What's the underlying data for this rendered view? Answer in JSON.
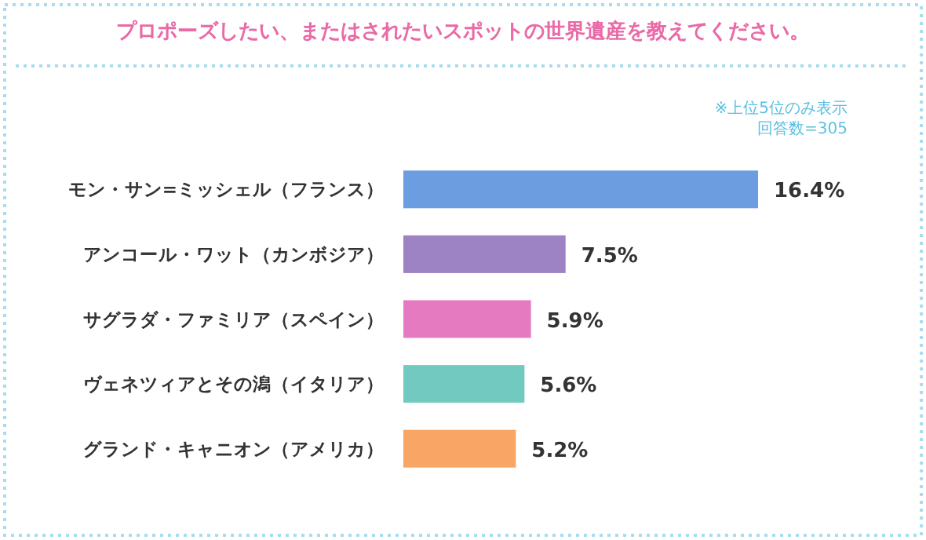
{
  "chart_data": {
    "type": "bar",
    "orientation": "horizontal",
    "title": "プロポーズしたい、またはされたいスポットの世界遺産を教えてください。",
    "annotations": [
      "※上位5位のみ表示",
      "回答数=305"
    ],
    "categories": [
      "モン・サン=ミッシェル（フランス）",
      "アンコール・ワット（カンボジア）",
      "サグラダ・ファミリア（スペイン）",
      "ヴェネツィアとその潟（イタリア）",
      "グランド・キャニオン（アメリカ）"
    ],
    "values": [
      16.4,
      7.5,
      5.9,
      5.6,
      5.2
    ],
    "value_labels": [
      "16.4%",
      "7.5%",
      "5.9%",
      "5.6%",
      "5.2%"
    ],
    "colors": [
      "#6c9de0",
      "#9d82c4",
      "#e57ac0",
      "#72c9c0",
      "#f8a565"
    ]
  }
}
